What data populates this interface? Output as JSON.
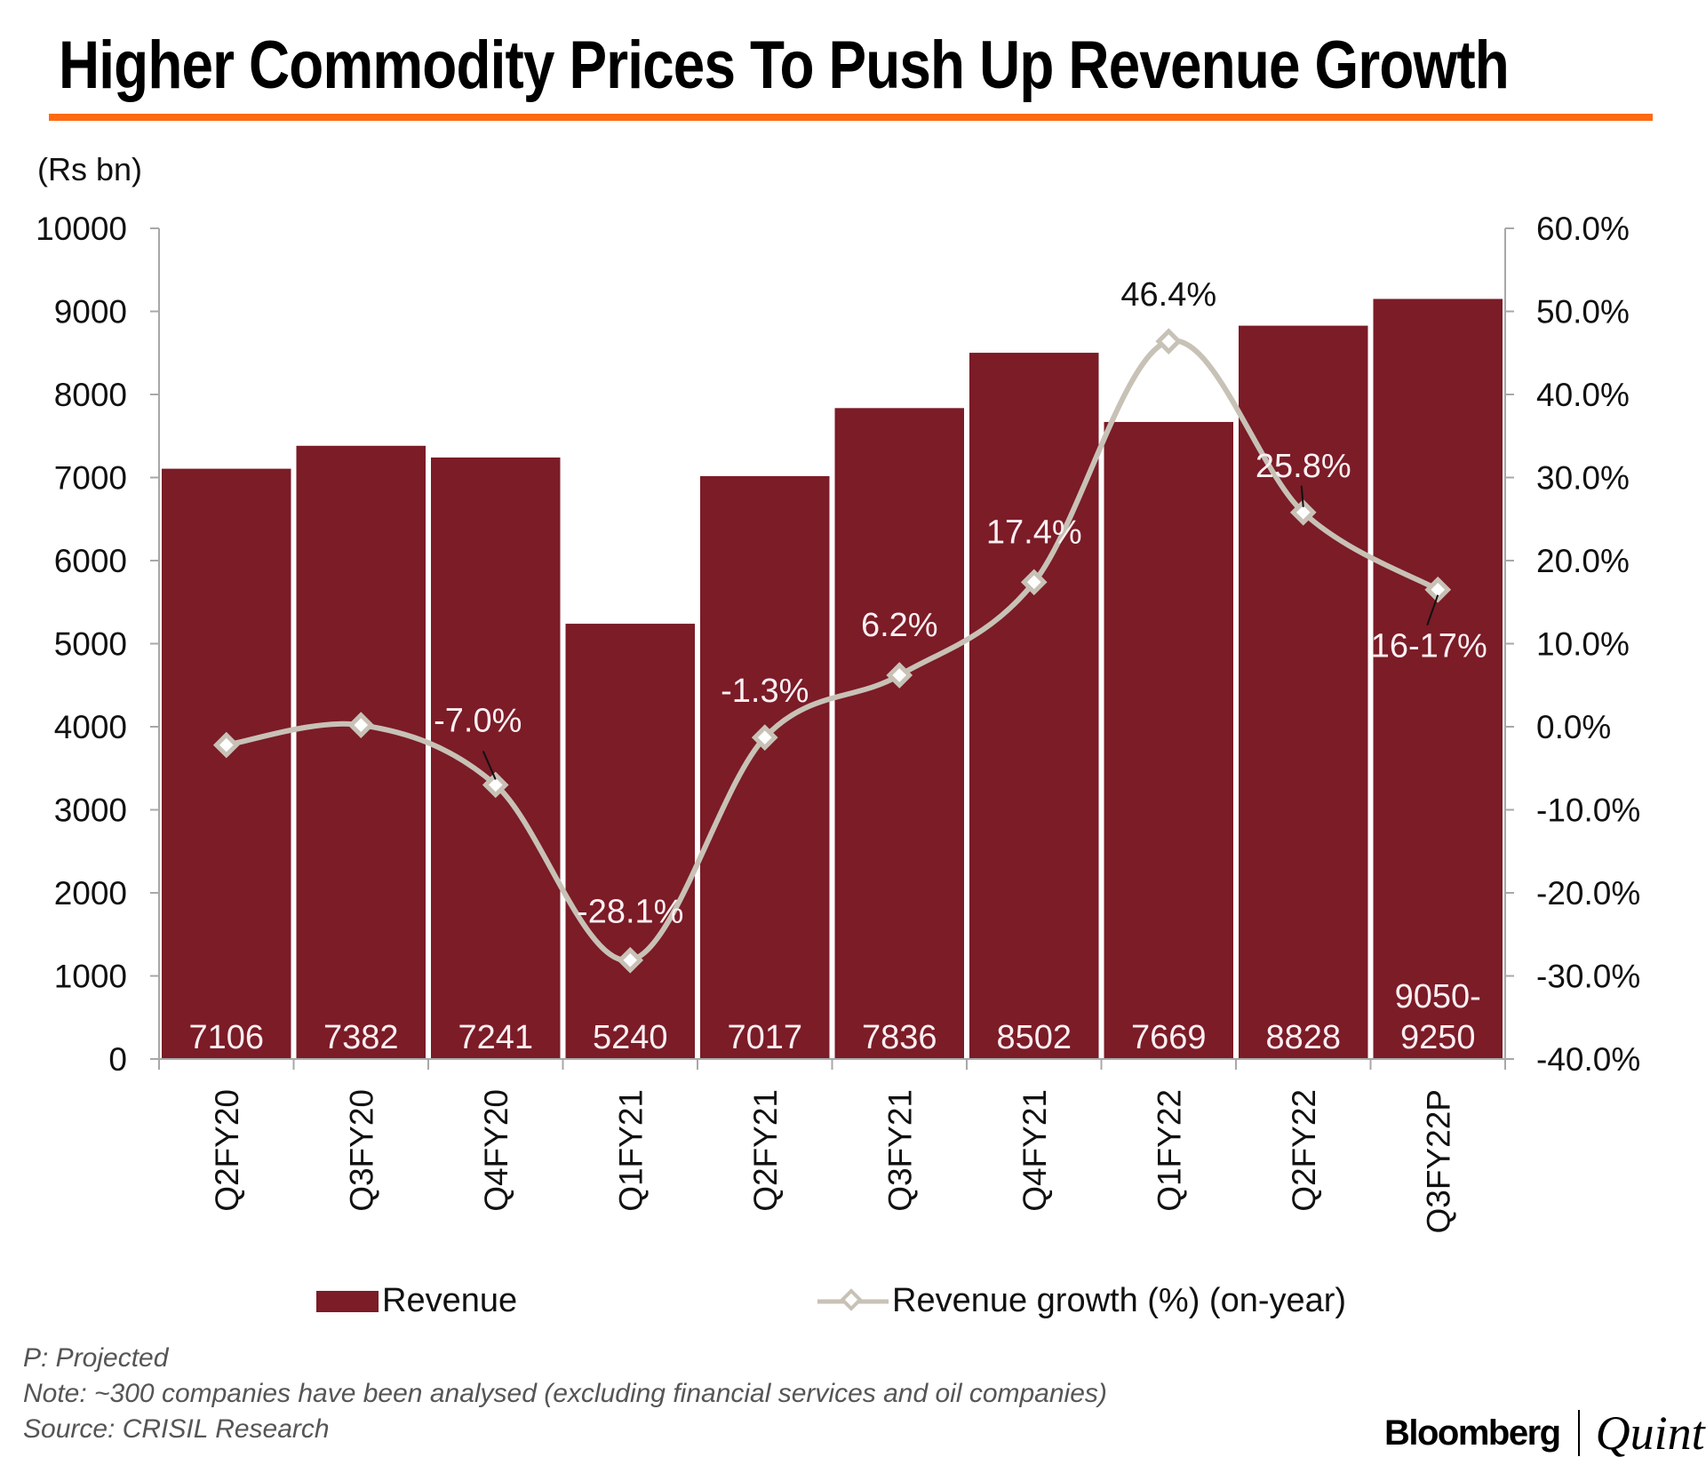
{
  "header": {
    "title": "Higher Commodity Prices To Push Up Revenue Growth",
    "accent_color": "#ff6a13"
  },
  "chart_data": {
    "type": "bar",
    "title": "Higher Commodity Prices To Push Up Revenue Growth",
    "ylabel": "(Rs bn)",
    "y2label": "",
    "xlabel": "",
    "categories": [
      "Q2FY20",
      "Q3FY20",
      "Q4FY20",
      "Q1FY21",
      "Q2FY21",
      "Q3FY21",
      "Q4FY21",
      "Q1FY22",
      "Q2FY22",
      "Q3FY22P"
    ],
    "ylim": [
      0,
      10000
    ],
    "y_ticks": [
      0,
      1000,
      2000,
      3000,
      4000,
      5000,
      6000,
      7000,
      8000,
      9000,
      10000
    ],
    "y_tick_labels": [
      "0",
      "1000",
      "2000",
      "3000",
      "4000",
      "5000",
      "6000",
      "7000",
      "8000",
      "9000",
      "10000"
    ],
    "y2lim": [
      -40,
      60
    ],
    "y2_ticks": [
      -40,
      -30,
      -20,
      -10,
      0,
      10,
      20,
      30,
      40,
      50,
      60
    ],
    "y2_tick_labels": [
      "-40.0%",
      "-30.0%",
      "-20.0%",
      "-10.0%",
      "0.0%",
      "10.0%",
      "20.0%",
      "30.0%",
      "40.0%",
      "50.0%",
      "60.0%"
    ],
    "grid": false,
    "legend_position": "bottom",
    "series": [
      {
        "name": "Revenue",
        "type": "bar",
        "axis": "left",
        "color": "#7b1c27",
        "values": [
          7106,
          7382,
          7241,
          5240,
          7017,
          7836,
          8502,
          7669,
          8828,
          9150
        ],
        "labels": [
          "7106",
          "7382",
          "7241",
          "5240",
          "7017",
          "7836",
          "8502",
          "7669",
          "8828",
          "9050-\n9250"
        ]
      },
      {
        "name": "Revenue growth (%) (on-year)",
        "type": "line",
        "axis": "right",
        "smooth": true,
        "marker": "diamond",
        "color": "#c8c1b6",
        "values": [
          -2.2,
          0.2,
          -7.0,
          -28.1,
          -1.3,
          6.2,
          17.4,
          46.4,
          25.8,
          16.5
        ],
        "labels": [
          "",
          "",
          "-7.0%",
          "-28.1%",
          "-1.3%",
          "6.2%",
          "17.4%",
          "46.4%",
          "25.8%",
          "16-17%"
        ]
      }
    ]
  },
  "legend": {
    "bar_label": "Revenue",
    "line_label": "Revenue growth (%) (on-year)"
  },
  "footer": {
    "projected_note": "P: Projected",
    "note": "Note: ~300 companies have been analysed (excluding financial services and oil companies)",
    "source": "Source: CRISIL Research"
  },
  "branding": {
    "left": "Bloomberg",
    "right": "Quint"
  }
}
